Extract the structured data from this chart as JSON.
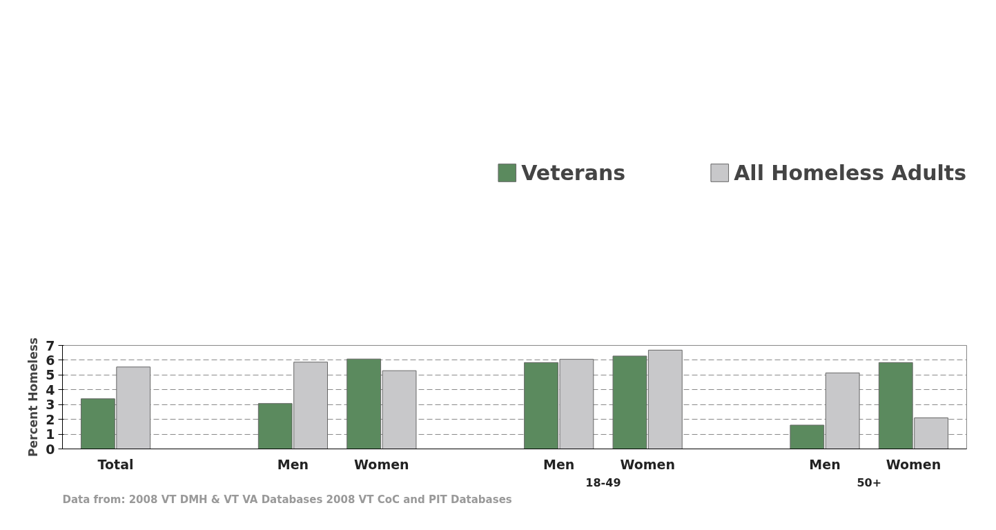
{
  "chart_data": {
    "type": "bar",
    "ylabel": "Percent Homeless",
    "categories": [
      "Total",
      null,
      "Men",
      "Women",
      null,
      "Men",
      "Women",
      null,
      "Men",
      "Women"
    ],
    "series": [
      {
        "name": "Veterans",
        "color": "#5b8a5e",
        "values": [
          3.39,
          null,
          3.07,
          6.08,
          null,
          5.84,
          6.28,
          null,
          1.61,
          5.84
        ]
      },
      {
        "name": "All Homeless Adults",
        "color": "#c8c8ca",
        "values": [
          5.54,
          null,
          5.87,
          5.29,
          null,
          6.06,
          6.68,
          null,
          5.14,
          2.1
        ]
      }
    ],
    "ylim": [
      0,
      7
    ],
    "yticks": [
      0,
      1,
      2,
      3,
      4,
      5,
      6,
      7
    ],
    "grid": "y",
    "legend": "top",
    "annotations": [
      "18-49",
      "50+",
      "Data from: 2008 VT DMH & VT VA Databases 2008 VT CoC and PIT Databases"
    ]
  }
}
